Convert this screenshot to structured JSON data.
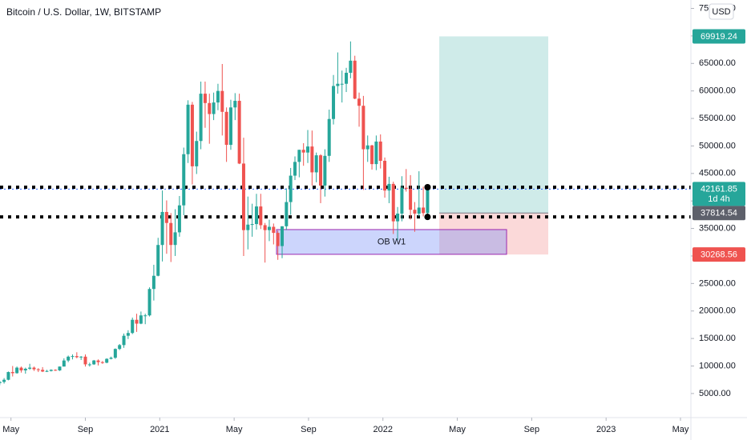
{
  "chart_data": {
    "type": "candlestick",
    "title": "Bitcoin / U.S. Dollar, 1W, BITSTAMP",
    "currency": "USD",
    "up_color": "#26a69a",
    "down_color": "#ef5350",
    "grid": false,
    "xlim": [
      3.41,
      40.56
    ],
    "xticks": [
      {
        "value": 4,
        "label": "May"
      },
      {
        "value": 8,
        "label": "Sep"
      },
      {
        "value": 12,
        "label": "2021"
      },
      {
        "value": 16,
        "label": "May"
      },
      {
        "value": 20,
        "label": "Sep"
      },
      {
        "value": 24,
        "label": "2022"
      },
      {
        "value": 28,
        "label": "May"
      },
      {
        "value": 32,
        "label": "Sep"
      },
      {
        "value": 36,
        "label": "2023"
      },
      {
        "value": 40,
        "label": "May"
      }
    ],
    "ylim": [
      620,
      76530
    ],
    "yticks": [
      {
        "value": 5000,
        "label": "5000.00"
      },
      {
        "value": 10000,
        "label": "10000.00"
      },
      {
        "value": 15000,
        "label": "15000.00"
      },
      {
        "value": 20000,
        "label": "20000.00"
      },
      {
        "value": 25000,
        "label": "25000.00"
      },
      {
        "value": 30000,
        "label": "30000.00"
      },
      {
        "value": 35000,
        "label": "35000.00"
      },
      {
        "value": 40000,
        "label": "40000.00"
      },
      {
        "value": 45000,
        "label": "45000.00"
      },
      {
        "value": 50000,
        "label": "50000.00"
      },
      {
        "value": 55000,
        "label": "55000.00"
      },
      {
        "value": 60000,
        "label": "60000.00"
      },
      {
        "value": 65000,
        "label": "65000.00"
      },
      {
        "value": 70000,
        "label": "70000.00"
      },
      {
        "value": 75000,
        "label": "75000.00"
      }
    ],
    "x": [
      3.4,
      3.63,
      3.86,
      4.09,
      4.32,
      4.55,
      4.78,
      5.01,
      5.24,
      5.47,
      5.7,
      5.93,
      6.16,
      6.39,
      6.62,
      6.85,
      7.08,
      7.31,
      7.54,
      7.77,
      8,
      8.23,
      8.46,
      8.69,
      8.92,
      9.15,
      9.38,
      9.61,
      9.84,
      10.07,
      10.3,
      10.53,
      10.76,
      10.99,
      11.22,
      11.45,
      11.68,
      11.91,
      12.14,
      12.37,
      12.6,
      12.83,
      13.06,
      13.29,
      13.52,
      13.75,
      13.98,
      14.21,
      14.44,
      14.67,
      14.9,
      15.13,
      15.36,
      15.59,
      15.82,
      16.05,
      16.28,
      16.51,
      16.74,
      16.97,
      17.2,
      17.43,
      17.66,
      17.89,
      18.12,
      18.35,
      18.58,
      18.81,
      19.04,
      19.27,
      19.5,
      19.73,
      19.96,
      20.19,
      20.42,
      20.65,
      20.88,
      21.11,
      21.34,
      21.57,
      21.8,
      22.03,
      22.26,
      22.49,
      22.72,
      22.95,
      23.18,
      23.41,
      23.64,
      23.87,
      24.1,
      24.33,
      24.56,
      24.79,
      25.02,
      25.25,
      25.48,
      25.71,
      25.94,
      26.17,
      26.4
    ],
    "ohlc": [
      [
        6900,
        7300,
        6500,
        7100
      ],
      [
        7100,
        7800,
        6800,
        7500
      ],
      [
        7500,
        9000,
        7400,
        8900
      ],
      [
        8900,
        10000,
        8100,
        8700
      ],
      [
        8700,
        9900,
        8600,
        9700
      ],
      [
        9700,
        9900,
        8800,
        9200
      ],
      [
        9200,
        9700,
        8600,
        9500
      ],
      [
        9500,
        10400,
        9300,
        9700
      ],
      [
        9700,
        9900,
        9100,
        9400
      ],
      [
        9400,
        9600,
        8900,
        9300
      ],
      [
        9300,
        9800,
        8900,
        9000
      ],
      [
        9000,
        9300,
        8900,
        9100
      ],
      [
        9100,
        9400,
        9000,
        9300
      ],
      [
        9300,
        9400,
        9100,
        9200
      ],
      [
        9200,
        9900,
        9100,
        9900
      ],
      [
        9900,
        11400,
        9900,
        11000
      ],
      [
        11000,
        11900,
        10700,
        11700
      ],
      [
        11700,
        12100,
        11200,
        11800
      ],
      [
        11800,
        12500,
        11400,
        11600
      ],
      [
        11600,
        11800,
        11100,
        11700
      ],
      [
        11700,
        12100,
        9900,
        10300
      ],
      [
        10300,
        10600,
        9900,
        10300
      ],
      [
        10300,
        11100,
        10200,
        11000
      ],
      [
        11000,
        11200,
        10100,
        10700
      ],
      [
        10700,
        10900,
        10400,
        10600
      ],
      [
        10600,
        11400,
        10500,
        11300
      ],
      [
        11300,
        11700,
        11200,
        11500
      ],
      [
        11500,
        13200,
        11300,
        13100
      ],
      [
        13100,
        14000,
        12900,
        13800
      ],
      [
        13800,
        15900,
        13300,
        15500
      ],
      [
        15500,
        16500,
        14900,
        16000
      ],
      [
        16000,
        18800,
        15800,
        18400
      ],
      [
        18400,
        19500,
        16200,
        17700
      ],
      [
        17700,
        19900,
        17600,
        19200
      ],
      [
        19200,
        19500,
        17600,
        19200
      ],
      [
        19200,
        24300,
        19000,
        24000
      ],
      [
        24000,
        28400,
        21900,
        26400
      ],
      [
        26400,
        33300,
        26300,
        32000
      ],
      [
        32000,
        41900,
        29000,
        38000
      ],
      [
        38000,
        40100,
        30400,
        36000
      ],
      [
        36000,
        37800,
        28900,
        32000
      ],
      [
        32000,
        38500,
        30000,
        34300
      ],
      [
        34300,
        40900,
        33500,
        39200
      ],
      [
        39200,
        49700,
        37400,
        48500
      ],
      [
        48500,
        58300,
        46900,
        57500
      ],
      [
        57500,
        58000,
        43000,
        46300
      ],
      [
        46300,
        52600,
        44900,
        50900
      ],
      [
        50900,
        61700,
        49400,
        59500
      ],
      [
        59500,
        61700,
        53300,
        57800
      ],
      [
        57800,
        59500,
        50400,
        55800
      ],
      [
        55800,
        59700,
        54700,
        57900
      ],
      [
        57900,
        61300,
        56500,
        60000
      ],
      [
        60000,
        64900,
        51900,
        56200
      ],
      [
        56200,
        57000,
        47100,
        50200
      ],
      [
        50200,
        58400,
        49300,
        57000
      ],
      [
        57000,
        59600,
        54700,
        58200
      ],
      [
        58200,
        59500,
        46700,
        46800
      ],
      [
        46800,
        51500,
        30000,
        34700
      ],
      [
        34700,
        40800,
        31200,
        35700
      ],
      [
        35700,
        39500,
        33500,
        35800
      ],
      [
        35800,
        41300,
        34800,
        39000
      ],
      [
        39000,
        41300,
        34900,
        35600
      ],
      [
        35600,
        36000,
        28800,
        34700
      ],
      [
        34700,
        36600,
        32700,
        35300
      ],
      [
        35300,
        35900,
        32100,
        34200
      ],
      [
        34200,
        34600,
        29300,
        31800
      ],
      [
        31800,
        35400,
        29600,
        35400
      ],
      [
        35400,
        42300,
        34700,
        39800
      ],
      [
        39800,
        46000,
        37500,
        44600
      ],
      [
        44600,
        48100,
        43800,
        47100
      ],
      [
        47100,
        49300,
        44300,
        49300
      ],
      [
        49300,
        50500,
        46400,
        48800
      ],
      [
        48800,
        52900,
        46900,
        49900
      ],
      [
        49900,
        52800,
        42800,
        45200
      ],
      [
        45200,
        48800,
        43400,
        48300
      ],
      [
        48300,
        48500,
        39600,
        42800
      ],
      [
        42800,
        49400,
        40800,
        48200
      ],
      [
        48200,
        56600,
        47100,
        54900
      ],
      [
        54900,
        62900,
        53900,
        60900
      ],
      [
        60900,
        67000,
        59500,
        61300
      ],
      [
        61300,
        63700,
        57900,
        61300
      ],
      [
        61300,
        64200,
        59800,
        63300
      ],
      [
        63300,
        69000,
        62300,
        65500
      ],
      [
        65500,
        66400,
        58500,
        58600
      ],
      [
        58600,
        59700,
        53500,
        57300
      ],
      [
        57300,
        59100,
        42000,
        49400
      ],
      [
        49400,
        51900,
        47100,
        50100
      ],
      [
        50100,
        50200,
        45700,
        46700
      ],
      [
        46700,
        51900,
        45600,
        50800
      ],
      [
        50800,
        52100,
        45900,
        47300
      ],
      [
        47300,
        47900,
        40600,
        41900
      ],
      [
        41900,
        44400,
        39600,
        43100
      ],
      [
        43100,
        43500,
        34000,
        36300
      ],
      [
        36300,
        38900,
        32900,
        37700
      ],
      [
        37700,
        44500,
        36300,
        42400
      ],
      [
        42400,
        45800,
        41700,
        42200
      ],
      [
        42200,
        44700,
        36600,
        38400
      ],
      [
        38400,
        39800,
        34400,
        37700
      ],
      [
        37700,
        45400,
        37200,
        38800
      ],
      [
        38800,
        42600,
        37200,
        37800
      ],
      [
        37800,
        42400,
        37600,
        42100
      ]
    ],
    "last_price": 42161.85,
    "countdown": "1d 4h",
    "levels": [
      42500,
      37100
    ],
    "position": {
      "entry": 37814.54,
      "take_profit": 69919.24,
      "stop_loss": 30268.56,
      "x_start": 27.03,
      "x_end": 32.89
    },
    "order_block": {
      "label": "OB W1",
      "top": 34800,
      "bottom": 30300,
      "x_start": 18.28,
      "x_end": 30.65
    }
  }
}
